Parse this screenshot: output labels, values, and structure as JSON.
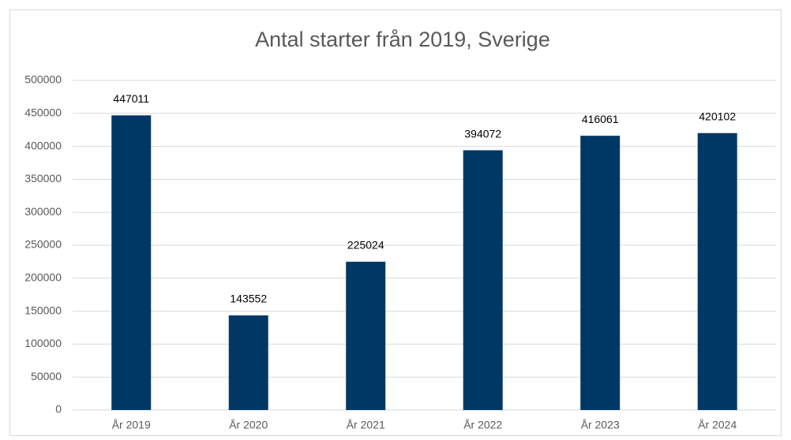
{
  "chart_data": {
    "type": "bar",
    "title": "Antal starter från 2019, Sverige",
    "categories": [
      "År 2019",
      "År 2020",
      "År 2021",
      "År 2022",
      "År 2023",
      "År 2024"
    ],
    "values": [
      447011,
      143552,
      225024,
      394072,
      416061,
      420102
    ],
    "color": "#003865",
    "ylim": [
      0,
      500000
    ],
    "yticks": [
      0,
      50000,
      100000,
      150000,
      200000,
      250000,
      300000,
      350000,
      400000,
      450000,
      500000
    ],
    "grid": true
  }
}
